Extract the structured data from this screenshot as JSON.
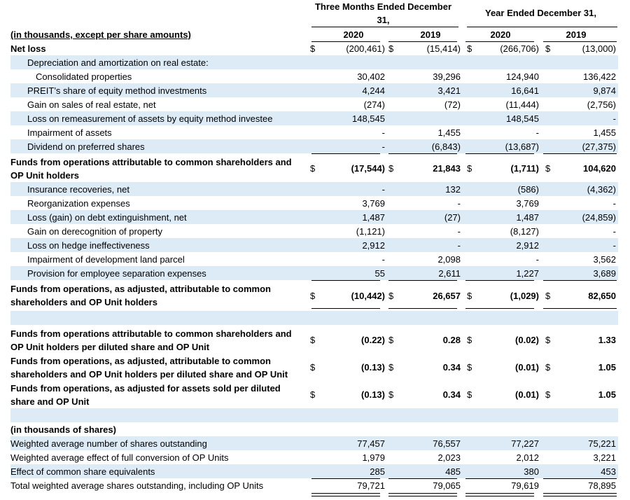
{
  "header": {
    "three_months": "Three Months Ended December 31,",
    "year_ended": "Year Ended December 31,",
    "col_2020_q": "2020",
    "col_2019_q": "2019",
    "col_2020_y": "2020",
    "col_2019_y": "2019"
  },
  "units_note": "(in thousands, except per share amounts)",
  "rows": [
    {
      "label": "Net loss",
      "c1": "(200,461)",
      "c2": "(15,414)",
      "c3": "(266,706)",
      "c4": "(13,000)",
      "dollar": "$"
    },
    {
      "label": "Depreciation and amortization on real estate:"
    },
    {
      "label": "Consolidated properties",
      "c1": "30,402",
      "c2": "39,296",
      "c3": "124,940",
      "c4": "136,422"
    },
    {
      "label": "PREIT’s share of equity method investments",
      "c1": "4,244",
      "c2": "3,421",
      "c3": "16,641",
      "c4": "9,874"
    },
    {
      "label": "Gain on sales of real estate, net",
      "c1": "(274)",
      "c2": "(72)",
      "c3": "(11,444)",
      "c4": "(2,756)"
    },
    {
      "label": "Loss on remeasurement of assets by equity method investee",
      "c1": "148,545",
      "c2": "",
      "c3": "148,545",
      "c4": "-"
    },
    {
      "label": "Impairment of assets",
      "c1": "-",
      "c2": "1,455",
      "c3": "-",
      "c4": "1,455"
    },
    {
      "label": "Dividend on preferred shares",
      "c1": "-",
      "c2": "(6,843)",
      "c3": "(13,687)",
      "c4": "(27,375)"
    },
    {
      "label": "Funds from operations attributable to common shareholders and OP Unit holders",
      "c1": "(17,544)",
      "c2": "21,843",
      "c3": "(1,711)",
      "c4": "104,620",
      "dollar": "$"
    },
    {
      "label": "Insurance recoveries, net",
      "c1": "-",
      "c2": "132",
      "c3": "(586)",
      "c4": "(4,362)"
    },
    {
      "label": "Reorganization expenses",
      "c1": "3,769",
      "c2": "-",
      "c3": "3,769",
      "c4": "-"
    },
    {
      "label": "Loss (gain) on debt extinguishment, net",
      "c1": "1,487",
      "c2": "(27)",
      "c3": "1,487",
      "c4": "(24,859)"
    },
    {
      "label": "Gain on derecognition of property",
      "c1": "(1,121)",
      "c2": "-",
      "c3": "(8,127)",
      "c4": "-"
    },
    {
      "label": "Loss on hedge ineffectiveness",
      "c1": "2,912",
      "c2": "-",
      "c3": "2,912",
      "c4": "-"
    },
    {
      "label": "Impairment of development land parcel",
      "c1": "-",
      "c2": "2,098",
      "c3": "-",
      "c4": "3,562"
    },
    {
      "label": "Provision for employee separation expenses",
      "c1": "55",
      "c2": "2,611",
      "c3": "1,227",
      "c4": "3,689"
    },
    {
      "label": "Funds from operations, as adjusted, attributable to common shareholders and OP Unit holders",
      "c1": "(10,442)",
      "c2": "26,657",
      "c3": "(1,029)",
      "c4": "82,650",
      "dollar": "$"
    },
    {
      "label": "Funds from operations attributable to common shareholders and OP Unit holders per diluted share and OP Unit",
      "c1": "(0.22)",
      "c2": "0.28",
      "c3": "(0.02)",
      "c4": "1.33",
      "dollar": "$"
    },
    {
      "label": "Funds from operations, as adjusted, attributable to common shareholders and OP Unit holders per diluted share and OP Unit",
      "c1": "(0.13)",
      "c2": "0.34",
      "c3": "(0.01)",
      "c4": "1.05",
      "dollar": "$"
    },
    {
      "label": "Funds from operations, as adjusted for assets sold per diluted share and OP Unit",
      "c1": "(0.13)",
      "c2": "0.34",
      "c3": "(0.01)",
      "c4": "1.05",
      "dollar": "$"
    },
    {
      "label": "(in thousands of shares)"
    },
    {
      "label": "Weighted average number of shares outstanding",
      "c1": "77,457",
      "c2": "76,557",
      "c3": "77,227",
      "c4": "75,221"
    },
    {
      "label": "Weighted average effect of full conversion of OP Units",
      "c1": "1,979",
      "c2": "2,023",
      "c3": "2,012",
      "c4": "3,221"
    },
    {
      "label": "Effect of common share equivalents",
      "c1": "285",
      "c2": "485",
      "c3": "380",
      "c4": "453"
    },
    {
      "label": "Total weighted average shares outstanding, including OP Units",
      "c1": "79,721",
      "c2": "79,065",
      "c3": "79,619",
      "c4": "78,895"
    }
  ],
  "colors": {
    "band": "#ddebf7"
  }
}
